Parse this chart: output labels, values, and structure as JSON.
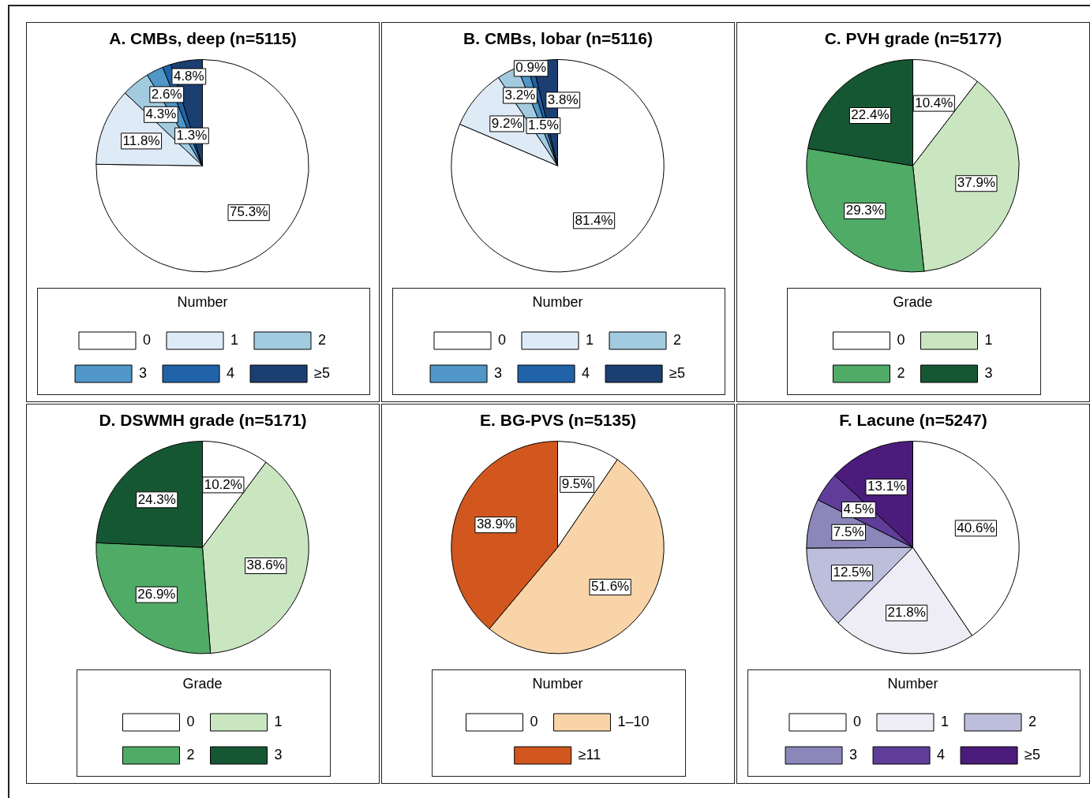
{
  "chart_data": [
    {
      "type": "pie",
      "title": "A. CMBs, deep (n=5115)",
      "legend_title": "Number",
      "legend": "bottom",
      "categories": [
        "0",
        "1",
        "2",
        "3",
        "4",
        "≥5"
      ],
      "values": [
        75.3,
        11.8,
        4.3,
        2.6,
        1.3,
        4.8
      ],
      "value_labels": [
        "75.3%",
        "11.8%",
        "4.3%",
        "2.6%",
        "1.3%",
        "4.8%"
      ],
      "colors": [
        "#ffffff",
        "#deebf7",
        "#a2cbe0",
        "#5096c6",
        "#2163a8",
        "#1c3f72"
      ]
    },
    {
      "type": "pie",
      "title": "B. CMBs, lobar (n=5116)",
      "legend_title": "Number",
      "legend": "bottom",
      "categories": [
        "0",
        "1",
        "2",
        "3",
        "4",
        "≥5"
      ],
      "values": [
        81.4,
        9.2,
        3.2,
        1.5,
        0.9,
        3.8
      ],
      "value_labels": [
        "81.4%",
        "9.2%",
        "3.2%",
        "1.5%",
        "0.9%",
        "3.8%"
      ],
      "colors": [
        "#ffffff",
        "#deebf7",
        "#a2cbe0",
        "#5096c6",
        "#2163a8",
        "#1c3f72"
      ]
    },
    {
      "type": "pie",
      "title": "C. PVH grade (n=5177)",
      "legend_title": "Grade",
      "legend": "bottom",
      "categories": [
        "0",
        "1",
        "2",
        "3"
      ],
      "values": [
        10.4,
        37.9,
        29.3,
        22.4
      ],
      "value_labels": [
        "10.4%",
        "37.9%",
        "29.3%",
        "22.4%"
      ],
      "colors": [
        "#ffffff",
        "#c9e6c1",
        "#4fab66",
        "#165733"
      ]
    },
    {
      "type": "pie",
      "title": "D. DSWMH grade (n=5171)",
      "legend_title": "Grade",
      "legend": "bottom",
      "categories": [
        "0",
        "1",
        "2",
        "3"
      ],
      "values": [
        10.2,
        38.6,
        26.9,
        24.3
      ],
      "value_labels": [
        "10.2%",
        "38.6%",
        "26.9%",
        "24.3%"
      ],
      "colors": [
        "#ffffff",
        "#c9e6c1",
        "#4fab66",
        "#165733"
      ]
    },
    {
      "type": "pie",
      "title": "E. BG-PVS (n=5135)",
      "legend_title": "Number",
      "legend": "bottom",
      "categories": [
        "0",
        "1–10",
        "≥11"
      ],
      "values": [
        9.5,
        51.6,
        38.9
      ],
      "value_labels": [
        "9.5%",
        "51.6%",
        "38.9%"
      ],
      "colors": [
        "#ffffff",
        "#f8d4a8",
        "#d1571f"
      ]
    },
    {
      "type": "pie",
      "title": "F. Lacune (n=5247)",
      "legend_title": "Number",
      "legend": "bottom",
      "categories": [
        "0",
        "1",
        "2",
        "3",
        "4",
        "≥5"
      ],
      "values": [
        40.6,
        21.8,
        12.5,
        7.5,
        4.5,
        13.1
      ],
      "value_labels": [
        "40.6%",
        "21.8%",
        "12.5%",
        "7.5%",
        "4.5%",
        "13.1%"
      ],
      "colors": [
        "#ffffff",
        "#eeedf5",
        "#bdbddc",
        "#8b87bb",
        "#5f3d98",
        "#4b1c7b"
      ]
    }
  ]
}
